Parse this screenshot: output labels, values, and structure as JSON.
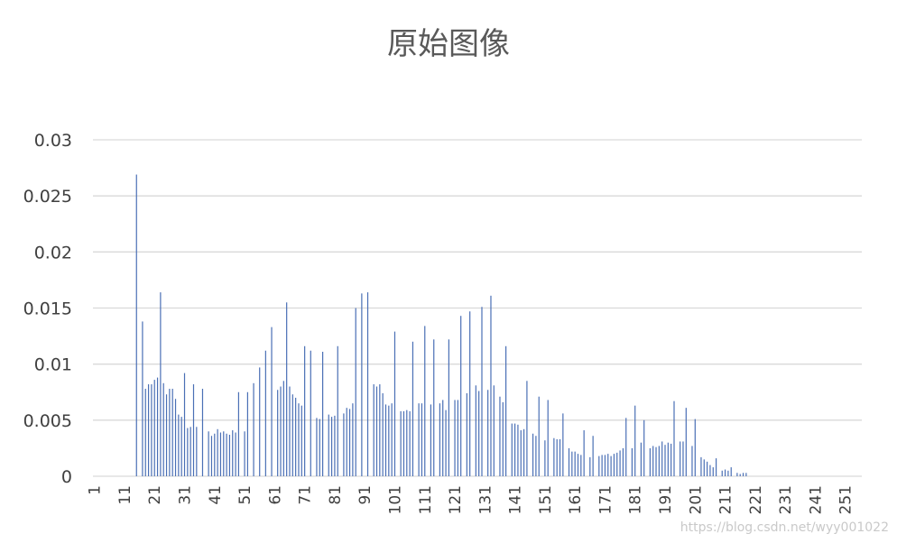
{
  "chart_data": {
    "type": "bar",
    "title": "原始图像",
    "x_start": 1,
    "x_end": 256,
    "xticks": [
      1,
      11,
      21,
      31,
      41,
      51,
      61,
      71,
      81,
      91,
      101,
      111,
      121,
      131,
      141,
      151,
      161,
      171,
      181,
      191,
      201,
      211,
      221,
      231,
      241,
      251
    ],
    "yticks": [
      "0",
      "0.005",
      "0.01",
      "0.015",
      "0.02",
      "0.025",
      "0.03"
    ],
    "ylim": [
      0,
      0.03
    ],
    "grid": true,
    "legend": "none",
    "bar_color": "#4a6fb5",
    "points": [
      [
        15,
        0.0269
      ],
      [
        17,
        0.0138
      ],
      [
        18,
        0.0078
      ],
      [
        19,
        0.0082
      ],
      [
        20,
        0.0082
      ],
      [
        21,
        0.0086
      ],
      [
        22,
        0.0088
      ],
      [
        23,
        0.0164
      ],
      [
        24,
        0.0083
      ],
      [
        25,
        0.0073
      ],
      [
        26,
        0.0078
      ],
      [
        27,
        0.0078
      ],
      [
        28,
        0.0069
      ],
      [
        29,
        0.0055
      ],
      [
        30,
        0.0053
      ],
      [
        31,
        0.0092
      ],
      [
        32,
        0.0043
      ],
      [
        33,
        0.0044
      ],
      [
        34,
        0.0082
      ],
      [
        35,
        0.0044
      ],
      [
        37,
        0.0078
      ],
      [
        39,
        0.004
      ],
      [
        40,
        0.0036
      ],
      [
        41,
        0.0038
      ],
      [
        42,
        0.0042
      ],
      [
        43,
        0.0039
      ],
      [
        44,
        0.004
      ],
      [
        45,
        0.0038
      ],
      [
        46,
        0.0037
      ],
      [
        47,
        0.0041
      ],
      [
        48,
        0.0039
      ],
      [
        49,
        0.0075
      ],
      [
        51,
        0.004
      ],
      [
        52,
        0.0075
      ],
      [
        54,
        0.0083
      ],
      [
        56,
        0.0097
      ],
      [
        58,
        0.0112
      ],
      [
        60,
        0.0133
      ],
      [
        62,
        0.0077
      ],
      [
        63,
        0.008
      ],
      [
        64,
        0.0085
      ],
      [
        65,
        0.0155
      ],
      [
        66,
        0.008
      ],
      [
        67,
        0.0073
      ],
      [
        68,
        0.007
      ],
      [
        69,
        0.0065
      ],
      [
        70,
        0.0063
      ],
      [
        71,
        0.0116
      ],
      [
        73,
        0.0112
      ],
      [
        75,
        0.0052
      ],
      [
        76,
        0.0051
      ],
      [
        77,
        0.0111
      ],
      [
        79,
        0.0055
      ],
      [
        80,
        0.0053
      ],
      [
        81,
        0.0054
      ],
      [
        82,
        0.0116
      ],
      [
        84,
        0.0056
      ],
      [
        85,
        0.0061
      ],
      [
        86,
        0.006
      ],
      [
        87,
        0.0065
      ],
      [
        88,
        0.015
      ],
      [
        90,
        0.0163
      ],
      [
        92,
        0.0164
      ],
      [
        94,
        0.0082
      ],
      [
        95,
        0.008
      ],
      [
        96,
        0.0082
      ],
      [
        97,
        0.0074
      ],
      [
        98,
        0.0064
      ],
      [
        99,
        0.0063
      ],
      [
        100,
        0.0065
      ],
      [
        101,
        0.0129
      ],
      [
        103,
        0.0058
      ],
      [
        104,
        0.0058
      ],
      [
        105,
        0.0059
      ],
      [
        106,
        0.0058
      ],
      [
        107,
        0.012
      ],
      [
        109,
        0.0065
      ],
      [
        110,
        0.0065
      ],
      [
        111,
        0.0134
      ],
      [
        113,
        0.0064
      ],
      [
        114,
        0.0122
      ],
      [
        116,
        0.0065
      ],
      [
        117,
        0.0068
      ],
      [
        118,
        0.0059
      ],
      [
        119,
        0.0122
      ],
      [
        121,
        0.0068
      ],
      [
        122,
        0.0068
      ],
      [
        123,
        0.0143
      ],
      [
        125,
        0.0074
      ],
      [
        126,
        0.0147
      ],
      [
        128,
        0.0081
      ],
      [
        129,
        0.0076
      ],
      [
        130,
        0.0151
      ],
      [
        132,
        0.0077
      ],
      [
        133,
        0.0161
      ],
      [
        134,
        0.0081
      ],
      [
        136,
        0.0071
      ],
      [
        137,
        0.0066
      ],
      [
        138,
        0.0116
      ],
      [
        140,
        0.0047
      ],
      [
        141,
        0.0047
      ],
      [
        142,
        0.0046
      ],
      [
        143,
        0.0041
      ],
      [
        144,
        0.0042
      ],
      [
        145,
        0.0085
      ],
      [
        147,
        0.0038
      ],
      [
        148,
        0.0036
      ],
      [
        149,
        0.0071
      ],
      [
        151,
        0.0032
      ],
      [
        152,
        0.0068
      ],
      [
        154,
        0.0034
      ],
      [
        155,
        0.0033
      ],
      [
        156,
        0.0033
      ],
      [
        157,
        0.0056
      ],
      [
        159,
        0.0025
      ],
      [
        160,
        0.0022
      ],
      [
        161,
        0.0022
      ],
      [
        162,
        0.002
      ],
      [
        163,
        0.0019
      ],
      [
        164,
        0.0041
      ],
      [
        166,
        0.0017
      ],
      [
        167,
        0.0036
      ],
      [
        169,
        0.0018
      ],
      [
        170,
        0.0019
      ],
      [
        171,
        0.0019
      ],
      [
        172,
        0.002
      ],
      [
        173,
        0.0018
      ],
      [
        174,
        0.002
      ],
      [
        175,
        0.0021
      ],
      [
        176,
        0.0023
      ],
      [
        177,
        0.0025
      ],
      [
        178,
        0.0052
      ],
      [
        180,
        0.0025
      ],
      [
        181,
        0.0063
      ],
      [
        183,
        0.003
      ],
      [
        184,
        0.005
      ],
      [
        186,
        0.0025
      ],
      [
        187,
        0.0027
      ],
      [
        188,
        0.0026
      ],
      [
        189,
        0.0027
      ],
      [
        190,
        0.0031
      ],
      [
        191,
        0.0028
      ],
      [
        192,
        0.003
      ],
      [
        193,
        0.0029
      ],
      [
        194,
        0.0067
      ],
      [
        196,
        0.0031
      ],
      [
        197,
        0.0031
      ],
      [
        198,
        0.0061
      ],
      [
        200,
        0.0027
      ],
      [
        201,
        0.0051
      ],
      [
        203,
        0.0017
      ],
      [
        204,
        0.0015
      ],
      [
        205,
        0.0013
      ],
      [
        206,
        0.001
      ],
      [
        207,
        0.0008
      ],
      [
        208,
        0.0016
      ],
      [
        210,
        0.0005
      ],
      [
        211,
        0.0006
      ],
      [
        212,
        0.0005
      ],
      [
        213,
        0.0008
      ],
      [
        215,
        0.0003
      ],
      [
        216,
        0.0002
      ],
      [
        217,
        0.0003
      ],
      [
        218,
        0.0003
      ]
    ]
  },
  "watermark_text": "https://blog.csdn.net/wyy001022"
}
